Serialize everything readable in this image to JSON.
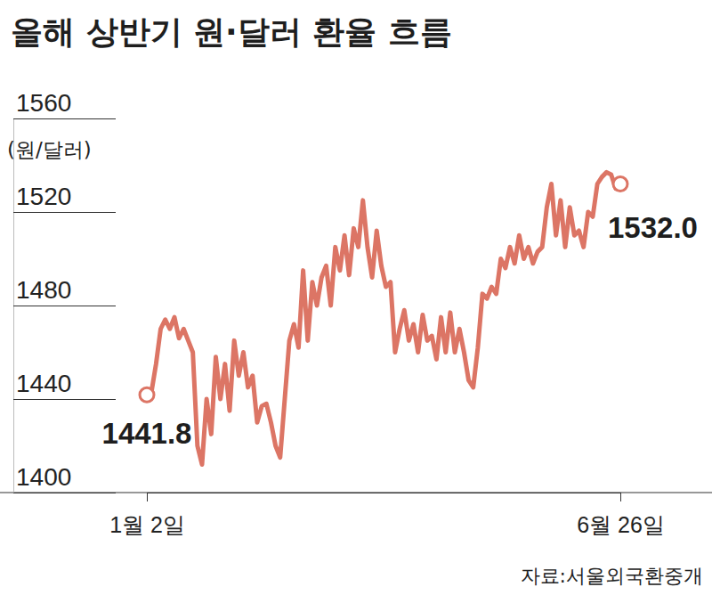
{
  "chart_data": {
    "type": "line",
    "title": "올해 상반기 원·달러 환율 흐름",
    "y_label": "(원/달러)",
    "source": "자료:서울외국환중개",
    "annotations": [
      "1441.8",
      "1532.0"
    ],
    "color": "#dc7565",
    "marker": "circle",
    "grid": false,
    "ylim": [
      1400,
      1560
    ],
    "yticks": [
      1400,
      1440,
      1480,
      1520,
      1560
    ],
    "categories": [
      "1월 2일",
      null,
      null,
      null,
      null,
      null,
      null,
      null,
      null,
      null,
      null,
      null,
      null,
      null,
      null,
      null,
      null,
      null,
      null,
      null,
      null,
      null,
      null,
      null,
      null,
      null,
      null,
      null,
      null,
      null,
      null,
      null,
      null,
      null,
      null,
      null,
      null,
      null,
      null,
      null,
      null,
      null,
      null,
      null,
      null,
      null,
      null,
      null,
      null,
      null,
      null,
      null,
      null,
      null,
      null,
      null,
      null,
      null,
      null,
      null,
      null,
      null,
      null,
      null,
      null,
      null,
      null,
      null,
      null,
      null,
      null,
      null,
      null,
      null,
      null,
      null,
      null,
      null,
      null,
      null,
      null,
      null,
      null,
      null,
      null,
      null,
      null,
      null,
      null,
      null,
      null,
      null,
      null,
      null,
      null,
      null,
      null,
      null,
      null,
      null,
      null,
      null,
      null,
      "6월 26일"
    ],
    "values": [
      1441.8,
      1443,
      1455,
      1470,
      1474,
      1470,
      1475,
      1466,
      1470,
      1465,
      1460,
      1420,
      1412,
      1440,
      1425,
      1458,
      1440,
      1455,
      1435,
      1465,
      1450,
      1460,
      1445,
      1450,
      1430,
      1437,
      1438,
      1430,
      1420,
      1415,
      1440,
      1465,
      1472,
      1462,
      1495,
      1465,
      1490,
      1480,
      1492,
      1497,
      1480,
      1505,
      1495,
      1510,
      1493,
      1513,
      1505,
      1525,
      1505,
      1492,
      1512,
      1497,
      1488,
      1490,
      1460,
      1470,
      1478,
      1465,
      1472,
      1460,
      1476,
      1465,
      1467,
      1457,
      1475,
      1460,
      1477,
      1460,
      1470,
      1460,
      1448,
      1445,
      1462,
      1485,
      1483,
      1488,
      1485,
      1500,
      1496,
      1505,
      1498,
      1510,
      1500,
      1505,
      1498,
      1503,
      1505,
      1522,
      1532,
      1510,
      1525,
      1505,
      1522,
      1510,
      1512,
      1505,
      1520,
      1518,
      1532,
      1535,
      1537,
      1536,
      1530,
      1532.0
    ]
  }
}
